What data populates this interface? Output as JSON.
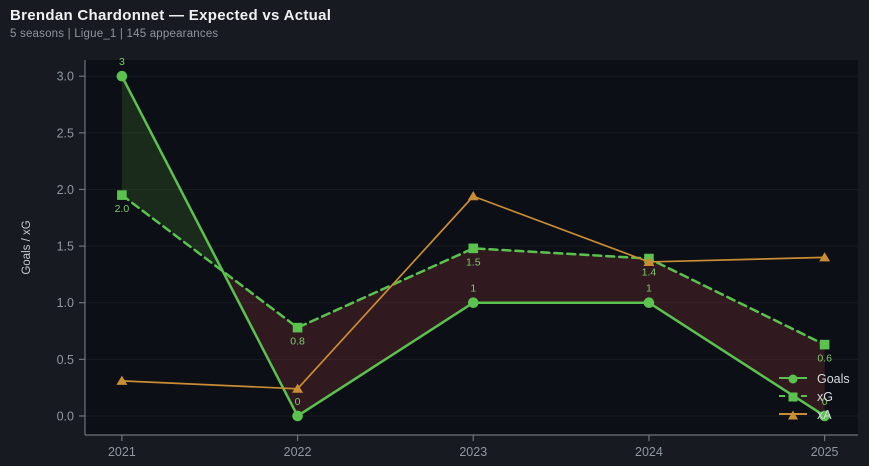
{
  "header": {
    "title": "Brendan Chardonnet — Expected vs Actual",
    "subtitle": "5 seasons | Ligue_1 | 145 appearances"
  },
  "colors": {
    "page_bg": "#171a21",
    "plot_bg": "#0c0f16",
    "grid": "rgba(255,255,255,0.05)",
    "spine": "#6e737b",
    "tick_label": "#9097a0",
    "axis_label": "#c6cad0",
    "title": "#f0f1f3",
    "subtitle": "#8f959e",
    "legend_text": "#d8dbdf",
    "goals_green": "#5bc24f",
    "xa_orange": "#c98d33",
    "data_label_green": "#7cc96b"
  },
  "chart_data": {
    "type": "line",
    "title": "Brendan Chardonnet — Expected vs Actual",
    "x": [
      2021,
      2022,
      2023,
      2024,
      2025
    ],
    "xtick_labels": [
      "2021",
      "2022",
      "2023",
      "2024",
      "2025"
    ],
    "ylabel": "Goals / xG",
    "xlabel": "",
    "yticks": [
      0.0,
      0.5,
      1.0,
      1.5,
      2.0,
      2.5,
      3.0
    ],
    "ytick_labels": [
      "0.0",
      "0.5",
      "1.0",
      "1.5",
      "2.0",
      "2.5",
      "3.0"
    ],
    "ylim": [
      -0.168,
      3.143
    ],
    "xlim": [
      -0.21,
      4.19
    ],
    "grid": true,
    "legend_position": "lower right",
    "series": [
      {
        "name": "Goals",
        "values": [
          3,
          0,
          1,
          1,
          0
        ],
        "labels": [
          "3",
          "0",
          "1",
          "1",
          "0"
        ],
        "label_side": "above",
        "color": "#5bc24f",
        "label_color": "#7cc96b",
        "style": "solid",
        "marker": "circle"
      },
      {
        "name": "xG",
        "values": [
          1.95,
          0.78,
          1.48,
          1.39,
          0.63
        ],
        "labels": [
          "2.0",
          "0.8",
          "1.5",
          "1.4",
          "0.6"
        ],
        "label_side": "below",
        "color": "#5bc24f",
        "label_color": "#7cc96b",
        "style": "dashed",
        "marker": "square"
      },
      {
        "name": "xA",
        "values": [
          0.31,
          0.24,
          1.94,
          1.36,
          1.4
        ],
        "labels": [],
        "label_side": "none",
        "color": "#c98d33",
        "label_color": "#c98d33",
        "style": "solid",
        "marker": "triangle"
      }
    ],
    "fill_between": {
      "upper": "Goals",
      "lower": "xG",
      "positive_color": "rgba(110,220,70,0.14)",
      "negative_color": "rgba(200,72,70,0.20)"
    }
  }
}
